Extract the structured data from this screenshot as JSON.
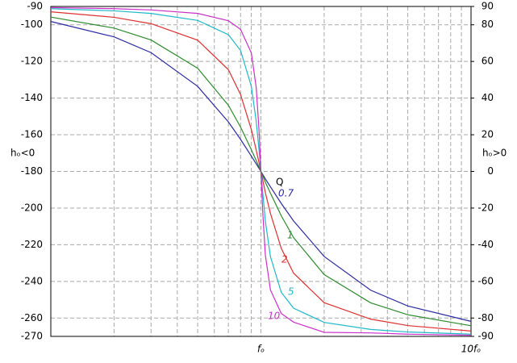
{
  "chart_data": {
    "type": "line",
    "x": [
      0.1,
      0.2,
      0.3,
      0.5,
      0.7,
      0.8,
      0.9,
      0.95,
      0.98,
      1,
      1.02,
      1.05,
      1.11,
      1.25,
      1.43,
      2,
      3.33,
      5,
      10
    ],
    "xlim": [
      0.1,
      10
    ],
    "xscale": "log",
    "xticks": [
      {
        "value": 1,
        "label": "fₒ"
      },
      {
        "value": 10,
        "label": "10fₒ"
      }
    ],
    "ylim": [
      -270,
      -90
    ],
    "yticks": [
      -90,
      -100,
      -120,
      -140,
      -160,
      -180,
      -200,
      -220,
      -240,
      -260,
      -270
    ],
    "y2lim": [
      -90,
      90
    ],
    "y2ticks": [
      90,
      80,
      60,
      40,
      20,
      0,
      -20,
      -40,
      -60,
      -80,
      -90
    ],
    "ylabel": "hₒ<0",
    "y2label": "hₒ>0",
    "grid": true,
    "annotation": "Q",
    "series": [
      {
        "name": "0.7",
        "color": "#2b2ba0",
        "values": [
          -98.2,
          -106.6,
          -115.2,
          -133.6,
          -153.0,
          -162.5,
          -171.6,
          -175.9,
          -178.4,
          -180,
          -181.6,
          -184.1,
          -188.4,
          -197.5,
          -207.0,
          -226.4,
          -244.8,
          -253.4,
          -261.8
        ]
      },
      {
        "name": "1",
        "color": "#2e8b2e",
        "values": [
          -95.8,
          -101.8,
          -108.3,
          -123.7,
          -143.9,
          -155.8,
          -168.1,
          -174.1,
          -177.7,
          -180,
          -182.3,
          -185.9,
          -191.9,
          -204.2,
          -216.1,
          -236.3,
          -251.7,
          -258.2,
          -264.2
        ]
      },
      {
        "name": "2",
        "color": "#dd3030",
        "values": [
          -92.9,
          -95.9,
          -99.4,
          -108.4,
          -124.5,
          -138.0,
          -157.1,
          -168.4,
          -175.4,
          -180,
          -184.6,
          -191.6,
          -202.9,
          -222.0,
          -235.5,
          -251.6,
          -260.6,
          -264.1,
          -267.1
        ]
      },
      {
        "name": "5",
        "color": "#1fb8c8",
        "values": [
          -91.2,
          -92.4,
          -93.8,
          -97.6,
          -105.4,
          -114.0,
          -133.5,
          -152.8,
          -168.6,
          -180,
          -191.4,
          -207.2,
          -226.5,
          -246.0,
          -254.6,
          -262.4,
          -266.2,
          -267.6,
          -268.8
        ]
      },
      {
        "name": "10",
        "color": "#c830c8",
        "values": [
          -90.6,
          -91.2,
          -91.9,
          -93.8,
          -97.8,
          -102.5,
          -115.3,
          -134.3,
          -158.0,
          -180,
          -202.0,
          -225.7,
          -244.7,
          -257.5,
          -262.2,
          -267.8,
          -268.1,
          -268.8,
          -269.4
        ]
      }
    ]
  }
}
